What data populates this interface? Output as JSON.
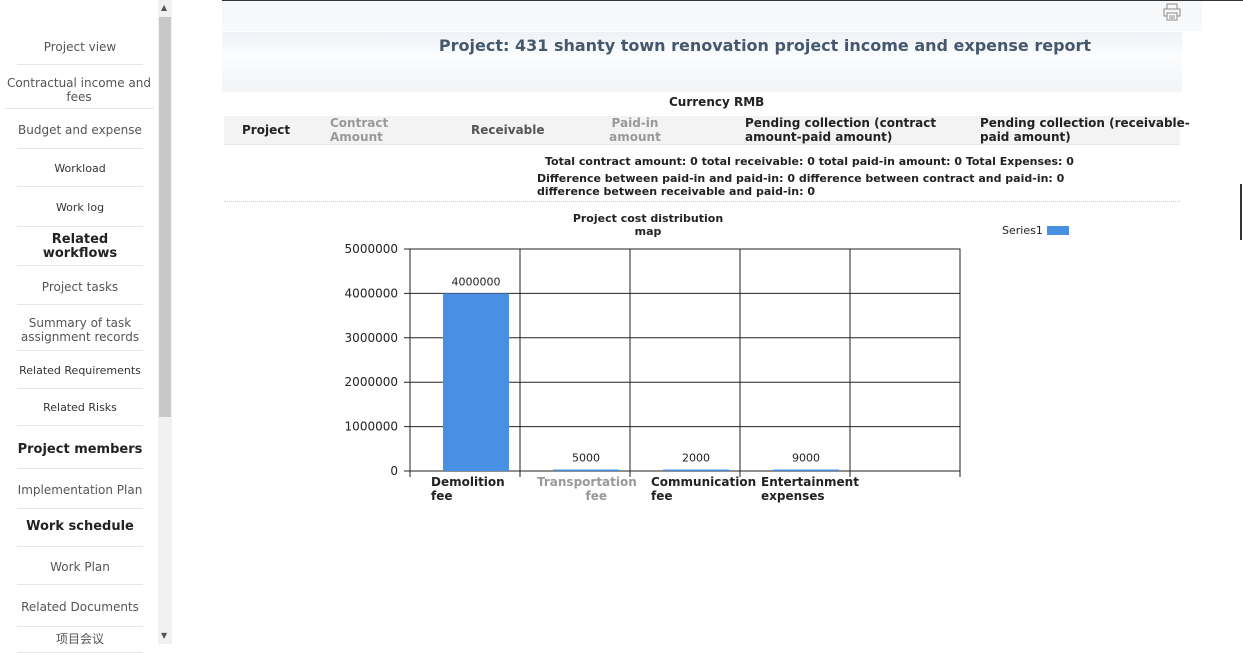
{
  "sidebar": {
    "items": [
      {
        "label": "Project view"
      },
      {
        "label": "Contractual income and fees"
      },
      {
        "label": "Budget and expense"
      },
      {
        "label": "Workload"
      },
      {
        "label": "Work log"
      },
      {
        "label": "Related workflows"
      },
      {
        "label": "Project tasks"
      },
      {
        "label": "Summary of task assignment records"
      },
      {
        "label": "Related Requirements"
      },
      {
        "label": "Related Risks"
      },
      {
        "label": "Project members"
      },
      {
        "label": "Implementation Plan"
      },
      {
        "label": "Work schedule"
      },
      {
        "label": "Work Plan"
      },
      {
        "label": "Related Documents"
      },
      {
        "label": "项目会议"
      }
    ]
  },
  "report": {
    "title": "Project: 431 shanty town renovation project income and expense report",
    "currency": "Currency RMB",
    "columns": [
      "Project",
      "Contract Amount",
      "Receivable",
      "Paid-in amount",
      "Pending collection (contract amount-paid amount)",
      "Pending collection (receivable-paid amount)"
    ],
    "summary_line1": "Total contract amount: 0 total receivable: 0 total paid-in amount: 0 Total Expenses: 0",
    "summary_line2": "Difference between paid-in and paid-in: 0 difference between contract and paid-in: 0 difference between receivable and paid-in: 0"
  },
  "icons": {
    "print": "printer-icon"
  },
  "colors": {
    "bar": "#4a90e2",
    "title": "#46586e"
  },
  "chart_data": {
    "type": "bar",
    "title": "Project cost distribution map",
    "categories": [
      "Demolition fee",
      "Transportation fee",
      "Communication fee",
      "Entertainment expenses"
    ],
    "series": [
      {
        "name": "Series1",
        "values": [
          4000000,
          5000,
          2000,
          9000
        ]
      }
    ],
    "ylim": [
      0,
      5000000
    ],
    "yticks": [
      0,
      1000000,
      2000000,
      3000000,
      4000000,
      5000000
    ],
    "grid": true,
    "legend": "top-right"
  }
}
